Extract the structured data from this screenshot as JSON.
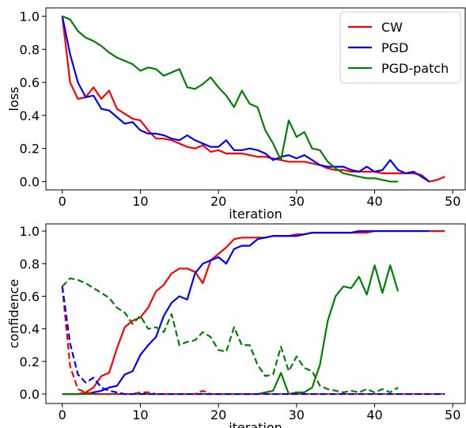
{
  "chart_data": [
    {
      "type": "line",
      "xlabel": "iteration",
      "ylabel": "loss",
      "legend": "upper right",
      "xlim": [
        -2.1,
        51.6
      ],
      "ylim": [
        -0.05,
        1.05
      ],
      "xticks": [
        0,
        10,
        20,
        30,
        40,
        50
      ],
      "yticks": [
        {
          "value": 0,
          "label": "0.0"
        },
        0.2,
        0.4,
        0.6,
        0.8,
        {
          "value": 1,
          "label": "1.0"
        }
      ],
      "x": [
        0,
        1,
        2,
        3,
        4,
        5,
        6,
        7,
        8,
        9,
        10,
        11,
        12,
        13,
        14,
        15,
        16,
        17,
        18,
        19,
        20,
        21,
        22,
        23,
        24,
        25,
        26,
        27,
        28,
        29,
        30,
        31,
        32,
        33,
        34,
        35,
        36,
        37,
        38,
        39,
        40,
        41,
        42,
        43,
        44,
        45,
        46,
        47,
        48,
        49
      ],
      "series": [
        {
          "name": "CW",
          "color": "#ff0000",
          "values": [
            1.0,
            0.6,
            0.5,
            0.51,
            0.57,
            0.5,
            0.55,
            0.44,
            0.41,
            0.38,
            0.37,
            0.31,
            0.26,
            0.26,
            0.25,
            0.23,
            0.21,
            0.2,
            0.22,
            0.18,
            0.19,
            0.17,
            0.17,
            0.17,
            0.16,
            0.15,
            0.15,
            0.14,
            0.13,
            0.12,
            0.12,
            0.12,
            0.11,
            0.1,
            0.08,
            0.07,
            0.07,
            0.06,
            0.06,
            0.06,
            0.06,
            0.05,
            0.05,
            0.05,
            0.05,
            0.05,
            0.04,
            0,
            0.01,
            0.03
          ]
        },
        {
          "name": "PGD",
          "color": "#0000ff",
          "values": [
            1.0,
            0.77,
            0.6,
            0.51,
            0.52,
            0.44,
            0.43,
            0.39,
            0.35,
            0.36,
            0.31,
            0.29,
            0.29,
            0.28,
            0.26,
            0.25,
            0.28,
            0.25,
            0.23,
            0.21,
            0.21,
            0.25,
            0.19,
            0.19,
            0.2,
            0.19,
            0.17,
            0.13,
            0.15,
            0.16,
            0.14,
            0.16,
            0.13,
            0.1,
            0.09,
            0.09,
            0.09,
            0.07,
            0.06,
            0.09,
            0.06,
            0.07,
            0.13,
            0.07,
            0.05,
            0.06,
            0.03,
            0,
            null,
            null
          ]
        },
        {
          "name": "PGD-patch",
          "color": "#008000",
          "values": [
            1.0,
            0.98,
            0.91,
            0.87,
            0.85,
            0.82,
            0.78,
            0.75,
            0.73,
            0.71,
            0.67,
            0.69,
            0.68,
            0.64,
            0.66,
            0.68,
            0.57,
            0.56,
            0.59,
            0.63,
            0.57,
            0.52,
            0.45,
            0.55,
            0.47,
            0.45,
            0.31,
            0.23,
            0.13,
            0.37,
            0.27,
            0.3,
            0.2,
            0.19,
            0.12,
            0.08,
            0.05,
            0.04,
            0.03,
            0.02,
            0.02,
            0.01,
            0,
            0,
            null,
            null,
            null,
            null,
            null,
            null
          ]
        }
      ]
    },
    {
      "type": "line",
      "xlabel": "iteration",
      "ylabel": "confidence",
      "xlim": [
        -2.1,
        51.6
      ],
      "ylim": [
        -0.058,
        1.044
      ],
      "xticks": [
        0,
        10,
        20,
        30,
        40,
        50
      ],
      "yticks": [
        {
          "value": 0,
          "label": "0.0"
        },
        0.2,
        0.4,
        0.6,
        0.8,
        {
          "value": 1,
          "label": "1.0"
        }
      ],
      "x": [
        0,
        1,
        2,
        3,
        4,
        5,
        6,
        7,
        8,
        9,
        10,
        11,
        12,
        13,
        14,
        15,
        16,
        17,
        18,
        19,
        20,
        21,
        22,
        23,
        24,
        25,
        26,
        27,
        28,
        29,
        30,
        31,
        32,
        33,
        34,
        35,
        36,
        37,
        38,
        39,
        40,
        41,
        42,
        43,
        44,
        45,
        46,
        47,
        48,
        49
      ],
      "series": [
        {
          "color": "#ff0000",
          "dash": false,
          "values": [
            0,
            0,
            0,
            0.01,
            0.04,
            0.11,
            0.13,
            0.28,
            0.41,
            0.45,
            0.47,
            0.53,
            0.63,
            0.67,
            0.74,
            0.77,
            0.77,
            0.75,
            0.68,
            0.82,
            0.86,
            0.9,
            0.95,
            0.96,
            0.96,
            0.96,
            0.96,
            0.97,
            0.97,
            0.97,
            0.98,
            0.98,
            0.99,
            0.99,
            0.99,
            0.99,
            0.99,
            0.99,
            0.99,
            0.99,
            1,
            1,
            1,
            1,
            1,
            1,
            1,
            1,
            1,
            1
          ]
        },
        {
          "color": "#0000ff",
          "dash": false,
          "values": [
            0,
            0,
            0,
            0,
            0.01,
            0.02,
            0.04,
            0.05,
            0.12,
            0.14,
            0.24,
            0.3,
            0.35,
            0.48,
            0.56,
            0.6,
            0.58,
            0.74,
            0.8,
            0.82,
            0.84,
            0.8,
            0.89,
            0.91,
            0.91,
            0.95,
            0.96,
            0.97,
            0.97,
            0.97,
            0.97,
            0.98,
            0.99,
            0.99,
            0.99,
            0.99,
            0.99,
            0.99,
            1,
            1,
            1,
            1,
            1,
            1,
            1,
            1,
            1,
            1,
            null,
            null
          ]
        },
        {
          "color": "#008000",
          "dash": false,
          "values": [
            0,
            0,
            0,
            0,
            0,
            0,
            0,
            0,
            0,
            0,
            0,
            0,
            0,
            0,
            0,
            0,
            0,
            0,
            0,
            0,
            0,
            0,
            0,
            0,
            0,
            0,
            0.01,
            0.02,
            0.13,
            0,
            0.01,
            0.01,
            0.04,
            0.18,
            0.45,
            0.6,
            0.66,
            0.65,
            0.72,
            0.61,
            0.79,
            0.62,
            0.79,
            0.63,
            null,
            null,
            null,
            null,
            null,
            null
          ]
        },
        {
          "color": "#ff0000",
          "dash": true,
          "values": [
            0.66,
            0.17,
            0.03,
            0.01,
            0,
            0,
            0,
            0,
            0,
            0,
            0.01,
            0.01,
            0,
            0,
            0,
            0,
            0,
            0,
            0.02,
            0,
            0,
            0,
            0,
            0,
            0,
            0,
            0,
            0,
            0,
            0,
            0,
            0,
            0,
            0,
            0,
            0,
            0,
            0,
            0,
            0,
            0,
            0,
            0,
            0,
            0,
            0,
            0,
            0,
            0,
            0
          ]
        },
        {
          "color": "#0000ff",
          "dash": true,
          "values": [
            0.66,
            0.31,
            0.12,
            0.07,
            0.1,
            0.04,
            0.02,
            0.01,
            0,
            0,
            0,
            0,
            0,
            0,
            0,
            0,
            0,
            0,
            0,
            0,
            0,
            0,
            0,
            0,
            0,
            0,
            0,
            0,
            0,
            0,
            0,
            0,
            0,
            0,
            0,
            0,
            0,
            0,
            0,
            0,
            0,
            0,
            0,
            0,
            0,
            0,
            0,
            0,
            0,
            0
          ]
        },
        {
          "color": "#008000",
          "dash": true,
          "values": [
            0.66,
            0.71,
            0.7,
            0.68,
            0.65,
            0.62,
            0.59,
            0.53,
            0.5,
            0.43,
            0.48,
            0.4,
            0.41,
            0.38,
            0.49,
            0.3,
            0.32,
            0.33,
            0.38,
            0.35,
            0.27,
            0.26,
            0.41,
            0.3,
            0.3,
            0.18,
            0.11,
            0.12,
            0.29,
            0.14,
            0.23,
            0.16,
            0.14,
            0.05,
            0.03,
            0.02,
            0.01,
            0.02,
            0.01,
            0.03,
            0.01,
            0.03,
            0.01,
            0.04,
            null,
            null,
            null,
            null,
            null,
            null
          ]
        }
      ]
    }
  ]
}
